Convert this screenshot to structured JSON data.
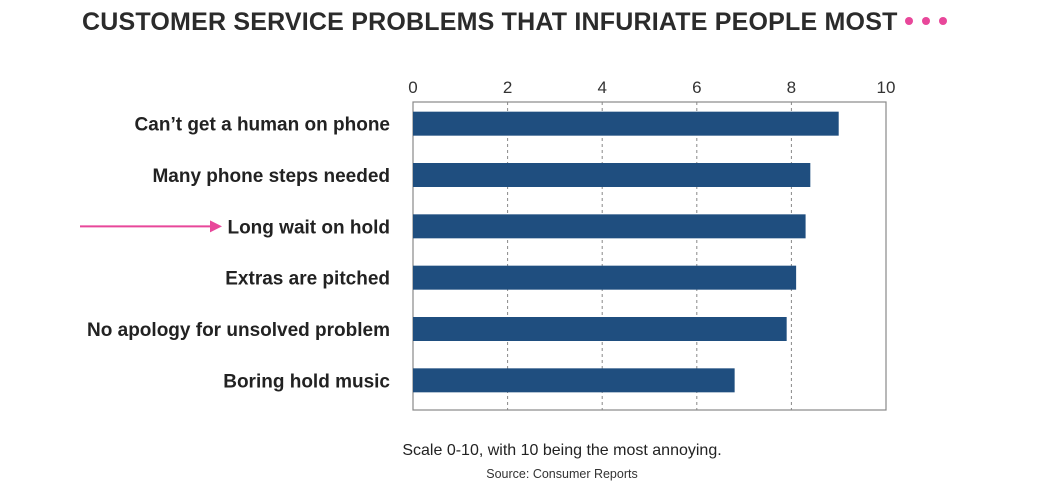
{
  "title": "CUSTOMER SERVICE PROBLEMS THAT INFURIATE PEOPLE MOST",
  "subtitle": "Scale 0-10, with 10 being the most annoying.",
  "source": "Source: Consumer Reports",
  "colors": {
    "bar": "#1f4e7f",
    "accent": "#e8479a",
    "grid": "#888888",
    "frame": "#888888"
  },
  "chart_data": {
    "type": "bar",
    "orientation": "horizontal",
    "categories": [
      "Can’t get a human on phone",
      "Many phone steps needed",
      "Long wait on hold",
      "Extras are pitched",
      "No apology for unsolved problem",
      "Boring hold music"
    ],
    "values": [
      9.0,
      8.4,
      8.3,
      8.1,
      7.9,
      6.8
    ],
    "xlim": [
      0,
      10
    ],
    "xticks": [
      0,
      2,
      4,
      6,
      8,
      10
    ],
    "x_axis_position": "top",
    "grid": "vertical dashed",
    "highlight_category_index": 2,
    "highlight_marker": "arrow"
  }
}
